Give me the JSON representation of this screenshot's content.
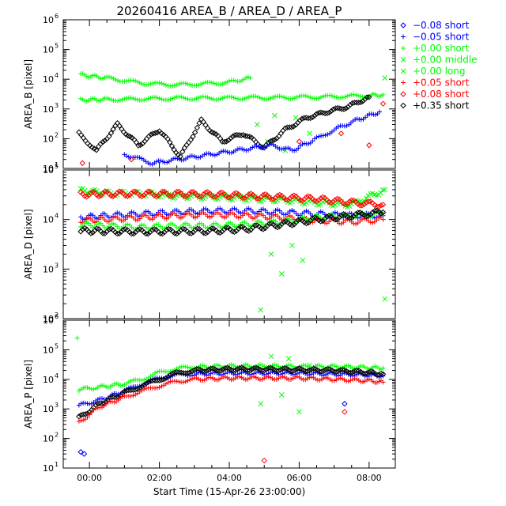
{
  "chart_data": {
    "type": "scatter",
    "title": "20260416 AREA_B / AREA_D / AREA_P",
    "xlabel": "Start Time (15-Apr-26 23:00:00)",
    "x_ticks": [
      "00:00",
      "02:00",
      "04:00",
      "06:00",
      "08:00"
    ],
    "x_tick_hours": [
      0,
      2,
      4,
      6,
      8
    ],
    "xlim_hours": [
      -0.75,
      8.75
    ],
    "yscale": "log",
    "legend_position": "right",
    "legend": [
      {
        "label": "−0.08 short",
        "color": "#0000ff",
        "marker": "diamond"
      },
      {
        "label": "−0.05 short",
        "color": "#0000ff",
        "marker": "plus"
      },
      {
        "label": "+0.00 short",
        "color": "#00ff00",
        "marker": "plus"
      },
      {
        "label": "+0.00 middle",
        "color": "#00ff00",
        "marker": "cross"
      },
      {
        "label": "+0.00 long",
        "color": "#00ff00",
        "marker": "cross"
      },
      {
        "label": "+0.05 short",
        "color": "#ff0000",
        "marker": "plus"
      },
      {
        "label": "+0.08 short",
        "color": "#ff0000",
        "marker": "diamond"
      },
      {
        "label": "+0.35 short",
        "color": "#000000",
        "marker": "diamond"
      }
    ],
    "panels": [
      {
        "ylabel": "AREA_B [pixel]",
        "ylim_exp": [
          1,
          6
        ],
        "tick_exps": [
          1,
          2,
          3,
          4,
          5,
          6
        ],
        "series": [
          {
            "color": "#00ff00",
            "marker": "plus",
            "x": [
              -0.25,
              0.5,
              1.0,
              1.5,
              2.0,
              2.5,
              3.0,
              3.5,
              4.0,
              4.6
            ],
            "y": [
              14000,
              11000,
              9000,
              7500,
              6800,
              6500,
              6800,
              7200,
              8000,
              11000
            ]
          },
          {
            "color": "#00ff00",
            "marker": "plus",
            "x": [
              -0.25,
              0.5,
              1.0,
              1.5,
              2.0,
              2.5,
              3.0,
              3.5,
              4.0,
              4.5,
              5.0,
              5.5,
              6.0,
              6.5,
              7.0,
              7.5,
              8.0,
              8.4
            ],
            "y": [
              2000,
              2100,
              2100,
              2200,
              2200,
              2300,
              2300,
              2300,
              2300,
              2400,
              2400,
              2400,
              2500,
              2500,
              2600,
              2700,
              2800,
              3000
            ]
          },
          {
            "color": "#00ff00",
            "marker": "cross",
            "x": [
              4.8,
              5.1,
              5.3,
              5.6,
              5.9,
              6.3,
              8.45
            ],
            "y": [
              300,
              80,
              600,
              40,
              500,
              150,
              11000
            ]
          },
          {
            "color": "#000000",
            "marker": "diamond",
            "x": [
              -0.3,
              0.2,
              0.8,
              1.4,
              2.0,
              2.6,
              3.2,
              3.8,
              4.4,
              5.0,
              5.6,
              6.2,
              6.8,
              7.4,
              8.0
            ],
            "y": [
              150,
              40,
              300,
              60,
              200,
              25,
              400,
              80,
              150,
              50,
              200,
              500,
              800,
              1200,
              2500
            ]
          },
          {
            "color": "#0000ff",
            "marker": "plus",
            "x": [
              1.0,
              1.8,
              5.2,
              5.8,
              6.5,
              7.0,
              7.6,
              8.3
            ],
            "y": [
              30,
              15,
              60,
              40,
              100,
              200,
              400,
              800
            ]
          },
          {
            "color": "#ff0000",
            "marker": "diamond",
            "x": [
              -0.2,
              1.2,
              6.0,
              7.2,
              8.0,
              8.4
            ],
            "y": [
              15,
              20,
              80,
              150,
              60,
              1500
            ]
          }
        ]
      },
      {
        "ylabel": "AREA_D [pixel]",
        "ylim_exp": [
          2,
          5
        ],
        "tick_exps": [
          2,
          3,
          4,
          5
        ],
        "series": [
          {
            "color": "#00ff00",
            "marker": "cross",
            "x": [
              -0.25,
              0.5,
              1.5,
              2.5,
              3.5,
              4.5,
              5.5,
              6.5,
              7.5,
              8.45
            ],
            "y": [
              38000,
              34000,
              33000,
              30000,
              29000,
              27000,
              25000,
              22000,
              20000,
              40000
            ]
          },
          {
            "color": "#ff0000",
            "marker": "diamond",
            "x": [
              -0.25,
              0.5,
              1.5,
              2.5,
              3.5,
              4.5,
              5.5,
              6.5,
              7.5,
              8.4
            ],
            "y": [
              32000,
              33000,
              33000,
              33000,
              32000,
              30000,
              28000,
              26000,
              22000,
              20000
            ]
          },
          {
            "color": "#0000ff",
            "marker": "plus",
            "x": [
              -0.25,
              0.5,
              1.5,
              2.5,
              3.5,
              4.5,
              5.5,
              6.5,
              7.5,
              8.4
            ],
            "y": [
              11000,
              12000,
              13000,
              14000,
              15000,
              15000,
              14000,
              13000,
              12000,
              12000
            ]
          },
          {
            "color": "#ff0000",
            "marker": "plus",
            "x": [
              -0.25,
              0.5,
              1.5,
              2.5,
              3.5,
              4.5,
              5.5,
              6.5,
              7.5,
              8.4
            ],
            "y": [
              9500,
              10000,
              11000,
              12000,
              12500,
              12000,
              11000,
              9500,
              9000,
              10000
            ]
          },
          {
            "color": "#00ff00",
            "marker": "plus",
            "x": [
              -0.25,
              0.5,
              1.5,
              2.5,
              3.5,
              4.5,
              5.5,
              6.5,
              7.5,
              8.4
            ],
            "y": [
              8000,
              7500,
              7000,
              7500,
              7500,
              8000,
              9000,
              11000,
              12000,
              13000
            ]
          },
          {
            "color": "#000000",
            "marker": "diamond",
            "x": [
              -0.25,
              0.5,
              1.5,
              2.5,
              3.5,
              4.5,
              5.5,
              6.5,
              7.5,
              8.4
            ],
            "y": [
              6000,
              5800,
              5700,
              5800,
              5900,
              6500,
              8000,
              10000,
              12000,
              14000
            ]
          },
          {
            "color": "#00ff00",
            "marker": "cross",
            "x": [
              4.9,
              5.2,
              5.5,
              5.8,
              6.1,
              8.45
            ],
            "y": [
              150,
              2000,
              800,
              3000,
              1500,
              250
            ]
          }
        ]
      },
      {
        "ylabel": "AREA_P [pixel]",
        "ylim_exp": [
          1,
          6
        ],
        "tick_exps": [
          1,
          2,
          3,
          4,
          5,
          6
        ],
        "series": [
          {
            "color": "#00ff00",
            "marker": "plus",
            "x": [
              -0.3,
              0.3,
              1.0,
              1.5,
              2.0,
              2.5,
              3.0,
              4.0,
              5.0,
              6.0,
              7.0,
              8.0,
              8.4
            ],
            "y": [
              4500,
              5500,
              7000,
              10000,
              17000,
              23000,
              26000,
              28000,
              28000,
              27000,
              27000,
              25000,
              24000
            ]
          },
          {
            "color": "#0000ff",
            "marker": "plus",
            "x": [
              -0.3,
              0.3,
              1.0,
              1.5,
              2.0,
              2.5,
              3.0,
              4.0,
              5.0,
              6.0,
              7.0,
              8.0,
              8.4
            ],
            "y": [
              1300,
              2000,
              4000,
              7000,
              11000,
              14000,
              15000,
              16000,
              16000,
              16000,
              15000,
              14000,
              13000
            ]
          },
          {
            "color": "#000000",
            "marker": "diamond",
            "x": [
              -0.3,
              0.3,
              1.0,
              1.5,
              2.0,
              2.5,
              3.0,
              4.0,
              5.0,
              6.0,
              7.0,
              8.0,
              8.4
            ],
            "y": [
              500,
              1500,
              3500,
              6000,
              10000,
              16000,
              20000,
              22000,
              22000,
              21000,
              20000,
              17000,
              15000
            ]
          },
          {
            "color": "#ff0000",
            "marker": "plus",
            "x": [
              -0.3,
              0.3,
              1.0,
              1.5,
              2.0,
              2.5,
              3.0,
              4.0,
              5.0,
              6.0,
              7.0,
              8.0,
              8.4
            ],
            "y": [
              350,
              1200,
              2500,
              4000,
              6000,
              8500,
              10000,
              11000,
              11000,
              11000,
              10000,
              9000,
              8000
            ]
          },
          {
            "color": "#00ff00",
            "marker": "plus",
            "x": [
              -0.35
            ],
            "y": [
              250000
            ]
          },
          {
            "color": "#00ff00",
            "marker": "cross",
            "x": [
              4.9,
              5.2,
              5.5,
              5.7,
              6.0,
              6.3
            ],
            "y": [
              1500,
              60000,
              3000,
              50000,
              800,
              30000
            ]
          },
          {
            "color": "#0000ff",
            "marker": "diamond",
            "x": [
              -0.25,
              -0.15,
              7.3
            ],
            "y": [
              35,
              30,
              1500
            ]
          },
          {
            "color": "#ff0000",
            "marker": "diamond",
            "x": [
              5.0,
              7.3
            ],
            "y": [
              18,
              800
            ]
          }
        ]
      }
    ]
  }
}
